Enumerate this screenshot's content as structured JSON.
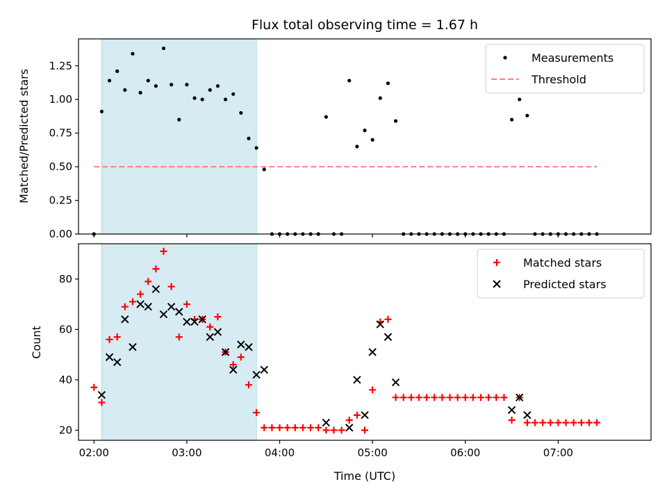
{
  "chart_data": [
    {
      "type": "scatter",
      "title": "Flux total observing time = 1.67 h",
      "ylabel": "Matched/Predicted stars",
      "xlabel": "",
      "xlim": [
        "01:50",
        "08:00"
      ],
      "ylim": [
        0,
        1.45
      ],
      "x_ticks": [
        "02:00",
        "03:00",
        "04:00",
        "05:00",
        "06:00",
        "07:00"
      ],
      "y_ticks": [
        "0.00",
        "0.25",
        "0.50",
        "0.75",
        "1.00",
        "1.25"
      ],
      "shaded_interval": {
        "start": "02:05",
        "end": "03:45",
        "color": "#add8e6"
      },
      "legend": {
        "position": "top-right",
        "entries": [
          "Measurements",
          "Threshold"
        ]
      },
      "threshold": {
        "name": "Threshold",
        "y": 0.5,
        "x_start": "02:00",
        "x_end": "07:25",
        "color": "#ff7f7f",
        "style": "dashed"
      },
      "series": [
        {
          "name": "Measurements",
          "color": "#000000",
          "marker": "dot",
          "points": [
            [
              "02:00",
              0.0
            ],
            [
              "02:05",
              0.91
            ],
            [
              "02:10",
              1.14
            ],
            [
              "02:15",
              1.21
            ],
            [
              "02:20",
              1.07
            ],
            [
              "02:25",
              1.34
            ],
            [
              "02:30",
              1.05
            ],
            [
              "02:35",
              1.14
            ],
            [
              "02:40",
              1.1
            ],
            [
              "02:45",
              1.38
            ],
            [
              "02:50",
              1.11
            ],
            [
              "02:55",
              0.85
            ],
            [
              "03:00",
              1.11
            ],
            [
              "03:05",
              1.01
            ],
            [
              "03:10",
              1.0
            ],
            [
              "03:15",
              1.07
            ],
            [
              "03:20",
              1.1
            ],
            [
              "03:25",
              1.0
            ],
            [
              "03:30",
              1.04
            ],
            [
              "03:35",
              0.9
            ],
            [
              "03:40",
              0.71
            ],
            [
              "03:45",
              0.64
            ],
            [
              "03:50",
              0.48
            ],
            [
              "03:55",
              0.0
            ],
            [
              "04:00",
              0.0
            ],
            [
              "04:05",
              0.0
            ],
            [
              "04:10",
              0.0
            ],
            [
              "04:15",
              0.0
            ],
            [
              "04:20",
              0.0
            ],
            [
              "04:25",
              0.0
            ],
            [
              "04:30",
              0.87
            ],
            [
              "04:35",
              0.0
            ],
            [
              "04:40",
              0.0
            ],
            [
              "04:45",
              1.14
            ],
            [
              "04:50",
              0.65
            ],
            [
              "04:55",
              0.77
            ],
            [
              "05:00",
              0.7
            ],
            [
              "05:05",
              1.01
            ],
            [
              "05:10",
              1.12
            ],
            [
              "05:15",
              0.84
            ],
            [
              "05:20",
              0.0
            ],
            [
              "05:25",
              0.0
            ],
            [
              "05:30",
              0.0
            ],
            [
              "05:35",
              0.0
            ],
            [
              "05:40",
              0.0
            ],
            [
              "05:45",
              0.0
            ],
            [
              "05:50",
              0.0
            ],
            [
              "05:55",
              0.0
            ],
            [
              "06:00",
              0.0
            ],
            [
              "06:05",
              0.0
            ],
            [
              "06:10",
              0.0
            ],
            [
              "06:15",
              0.0
            ],
            [
              "06:20",
              0.0
            ],
            [
              "06:25",
              0.0
            ],
            [
              "06:30",
              0.85
            ],
            [
              "06:35",
              1.0
            ],
            [
              "06:40",
              0.88
            ],
            [
              "06:45",
              0.0
            ],
            [
              "06:50",
              0.0
            ],
            [
              "06:55",
              0.0
            ],
            [
              "07:00",
              0.0
            ],
            [
              "07:05",
              0.0
            ],
            [
              "07:10",
              0.0
            ],
            [
              "07:15",
              0.0
            ],
            [
              "07:20",
              0.0
            ],
            [
              "07:25",
              0.0
            ]
          ]
        }
      ]
    },
    {
      "type": "scatter",
      "title": "",
      "ylabel": "Count",
      "xlabel": "Time (UTC)",
      "xlim": [
        "01:50",
        "08:00"
      ],
      "ylim": [
        16,
        94
      ],
      "x_ticks": [
        "02:00",
        "03:00",
        "04:00",
        "05:00",
        "06:00",
        "07:00"
      ],
      "y_ticks": [
        "20",
        "40",
        "60",
        "80"
      ],
      "shaded_interval": {
        "start": "02:05",
        "end": "03:45",
        "color": "#add8e6"
      },
      "legend": {
        "position": "top-right",
        "entries": [
          "Matched stars",
          "Predicted stars"
        ]
      },
      "series": [
        {
          "name": "Matched stars",
          "color": "#ff0000",
          "marker": "plus",
          "points": [
            [
              "02:00",
              37
            ],
            [
              "02:05",
              31
            ],
            [
              "02:10",
              56
            ],
            [
              "02:15",
              57
            ],
            [
              "02:20",
              69
            ],
            [
              "02:25",
              71
            ],
            [
              "02:30",
              74
            ],
            [
              "02:35",
              79
            ],
            [
              "02:40",
              84
            ],
            [
              "02:45",
              91
            ],
            [
              "02:50",
              77
            ],
            [
              "02:55",
              57
            ],
            [
              "03:00",
              70
            ],
            [
              "03:05",
              64
            ],
            [
              "03:10",
              64
            ],
            [
              "03:15",
              61
            ],
            [
              "03:20",
              65
            ],
            [
              "03:25",
              51
            ],
            [
              "03:30",
              46
            ],
            [
              "03:35",
              49
            ],
            [
              "03:40",
              38
            ],
            [
              "03:45",
              27
            ],
            [
              "03:50",
              21
            ],
            [
              "03:55",
              21
            ],
            [
              "04:00",
              21
            ],
            [
              "04:05",
              21
            ],
            [
              "04:10",
              21
            ],
            [
              "04:15",
              21
            ],
            [
              "04:20",
              21
            ],
            [
              "04:25",
              21
            ],
            [
              "04:30",
              20
            ],
            [
              "04:35",
              20
            ],
            [
              "04:40",
              20
            ],
            [
              "04:45",
              24
            ],
            [
              "04:50",
              26
            ],
            [
              "04:55",
              20
            ],
            [
              "05:00",
              36
            ],
            [
              "05:05",
              63
            ],
            [
              "05:10",
              64
            ],
            [
              "05:15",
              33
            ],
            [
              "05:20",
              33
            ],
            [
              "05:25",
              33
            ],
            [
              "05:30",
              33
            ],
            [
              "05:35",
              33
            ],
            [
              "05:40",
              33
            ],
            [
              "05:45",
              33
            ],
            [
              "05:50",
              33
            ],
            [
              "05:55",
              33
            ],
            [
              "06:00",
              33
            ],
            [
              "06:05",
              33
            ],
            [
              "06:10",
              33
            ],
            [
              "06:15",
              33
            ],
            [
              "06:20",
              33
            ],
            [
              "06:25",
              33
            ],
            [
              "06:30",
              24
            ],
            [
              "06:35",
              33
            ],
            [
              "06:40",
              23
            ],
            [
              "06:45",
              23
            ],
            [
              "06:50",
              23
            ],
            [
              "06:55",
              23
            ],
            [
              "07:00",
              23
            ],
            [
              "07:05",
              23
            ],
            [
              "07:10",
              23
            ],
            [
              "07:15",
              23
            ],
            [
              "07:20",
              23
            ],
            [
              "07:25",
              23
            ]
          ]
        },
        {
          "name": "Predicted stars",
          "color": "#000000",
          "marker": "x",
          "points": [
            [
              "02:05",
              34
            ],
            [
              "02:10",
              49
            ],
            [
              "02:15",
              47
            ],
            [
              "02:20",
              64
            ],
            [
              "02:25",
              53
            ],
            [
              "02:30",
              70
            ],
            [
              "02:35",
              69
            ],
            [
              "02:40",
              76
            ],
            [
              "02:45",
              66
            ],
            [
              "02:50",
              69
            ],
            [
              "02:55",
              67
            ],
            [
              "03:00",
              63
            ],
            [
              "03:05",
              63
            ],
            [
              "03:10",
              64
            ],
            [
              "03:15",
              57
            ],
            [
              "03:20",
              59
            ],
            [
              "03:25",
              51
            ],
            [
              "03:30",
              44
            ],
            [
              "03:35",
              54
            ],
            [
              "03:40",
              53
            ],
            [
              "03:45",
              42
            ],
            [
              "03:50",
              44
            ],
            [
              "04:30",
              23
            ],
            [
              "04:45",
              21
            ],
            [
              "04:50",
              40
            ],
            [
              "04:55",
              26
            ],
            [
              "05:00",
              51
            ],
            [
              "05:05",
              62
            ],
            [
              "05:10",
              57
            ],
            [
              "05:15",
              39
            ],
            [
              "06:30",
              28
            ],
            [
              "06:35",
              33
            ],
            [
              "06:40",
              26
            ]
          ]
        }
      ]
    }
  ]
}
